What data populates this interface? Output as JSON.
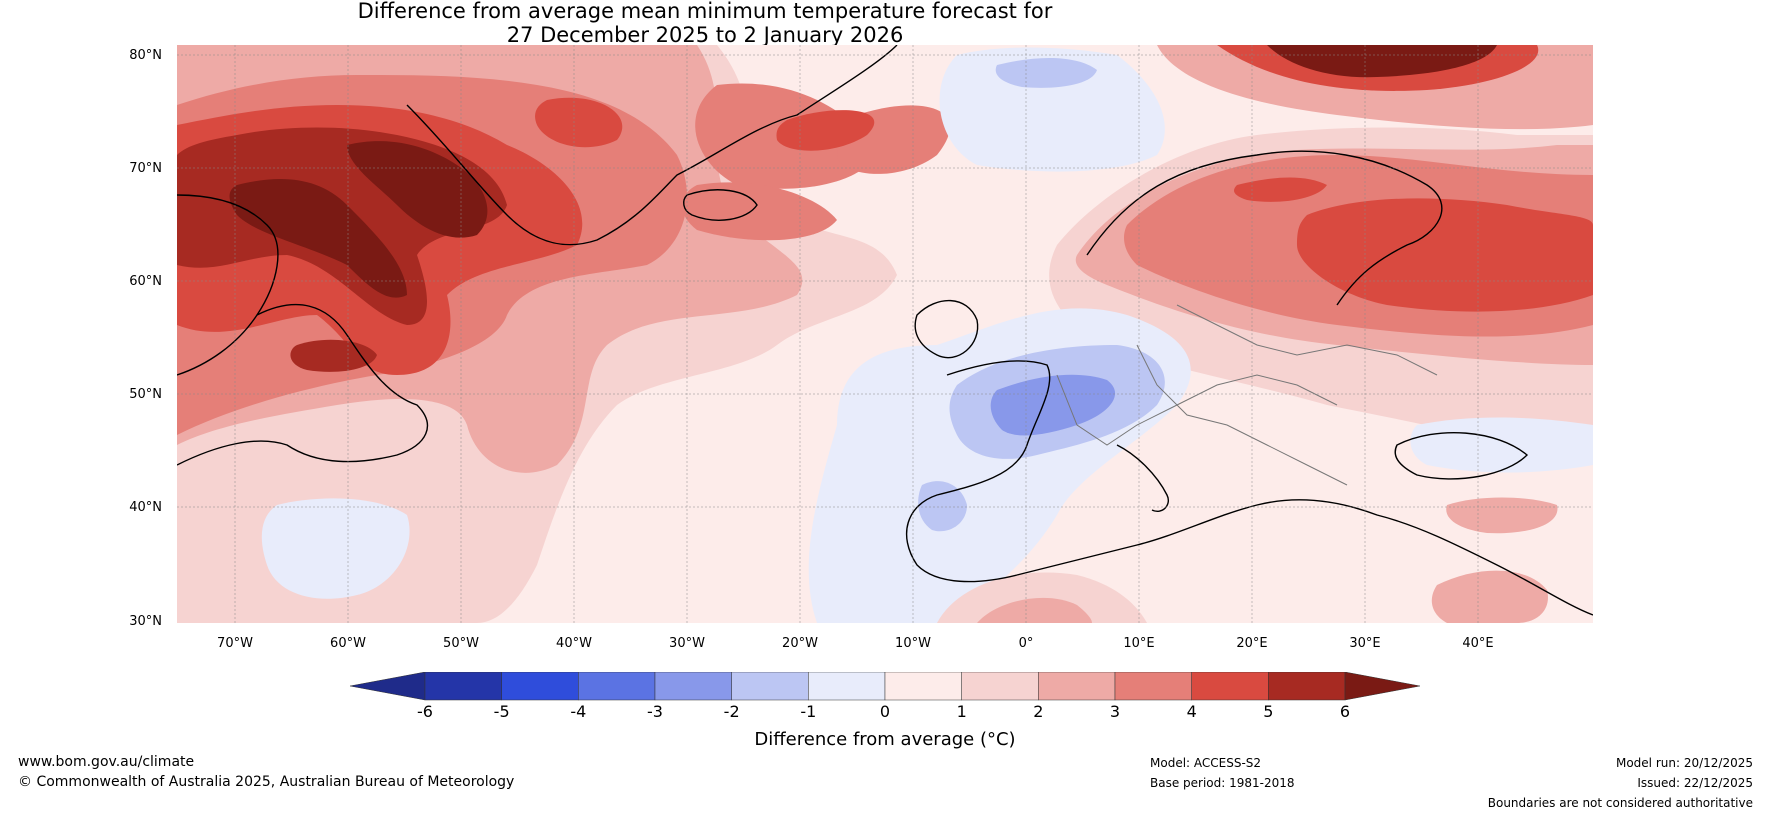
{
  "title": {
    "line1": "Difference from average mean minimum temperature forecast for",
    "line2": "27 December 2025 to 2 January 2026"
  },
  "map": {
    "region": "North Atlantic and Europe",
    "lat_labels": [
      "80°N",
      "70°N",
      "60°N",
      "50°N",
      "40°N",
      "30°N"
    ],
    "lon_labels": [
      "70°W",
      "60°W",
      "50°W",
      "40°W",
      "30°W",
      "20°W",
      "10°W",
      "0°",
      "10°E",
      "20°E",
      "30°E",
      "40°E"
    ]
  },
  "colorbar": {
    "ticks": [
      "-6",
      "-5",
      "-4",
      "-3",
      "-2",
      "-1",
      "0",
      "1",
      "2",
      "3",
      "4",
      "5",
      "6"
    ],
    "colors": [
      "#1f2b8a",
      "#2435a8",
      "#2f4ddb",
      "#5b73e3",
      "#8898ea",
      "#bcc6f3",
      "#e8ecfb",
      "#fdecea",
      "#f6d3d1",
      "#eeaaa6",
      "#e57f78",
      "#d94a40",
      "#a72a22",
      "#7a1a14"
    ],
    "label": "Difference from average (°C)"
  },
  "footer": {
    "url": "www.bom.gov.au/climate",
    "copyright": "© Commonwealth of Australia 2025, Australian Bureau of Meteorology",
    "model": "Model: ACCESS-S2",
    "base_period": "Base period: 1981-2018",
    "model_run": "Model run: 20/12/2025",
    "issued": "Issued: 22/12/2025",
    "disclaimer": "Boundaries are not considered authoritative"
  }
}
